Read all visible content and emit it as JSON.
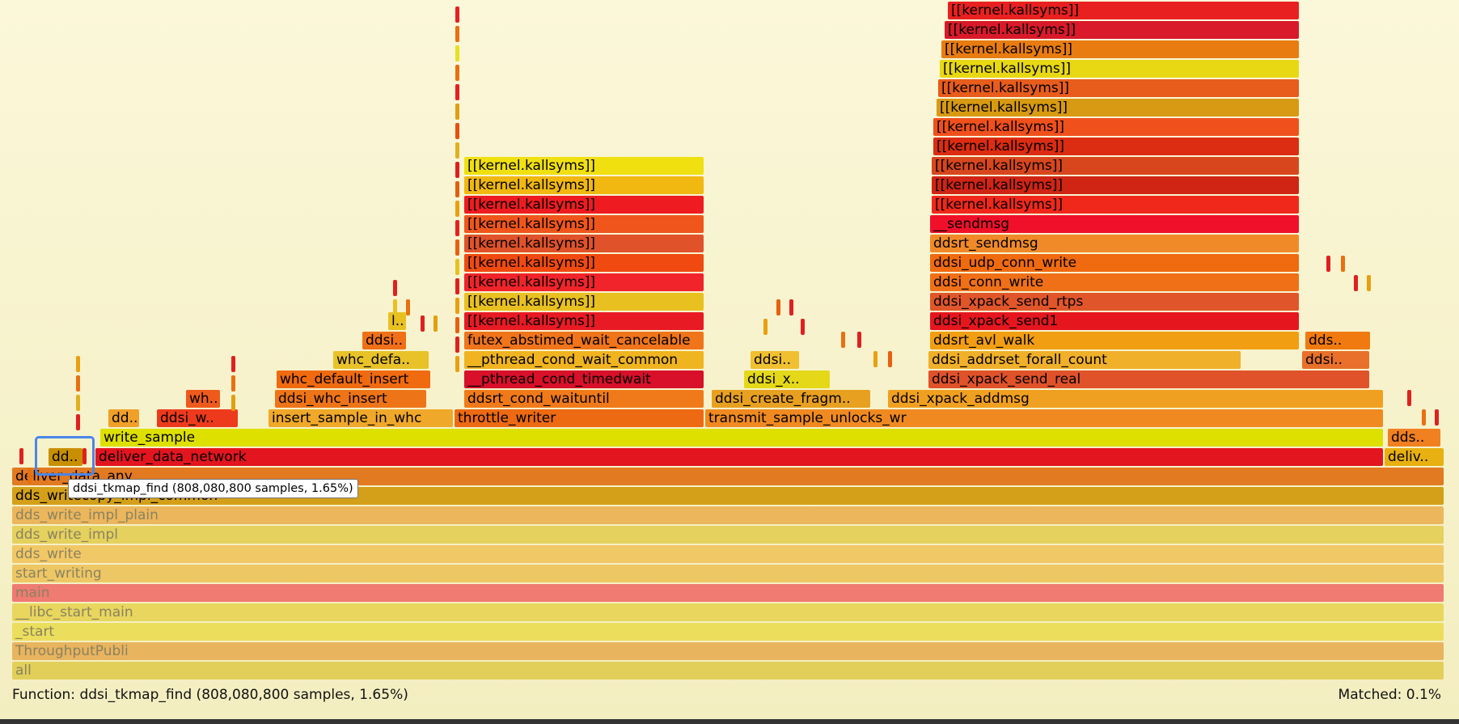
{
  "frames": [
    {
      "label": "all",
      "color": "#e2cf5a",
      "dim": true
    },
    {
      "label": "ThroughputPubli",
      "color": "#e8b45e",
      "dim": true
    },
    {
      "label": "_start",
      "color": "#ebde5d",
      "dim": true
    },
    {
      "label": "__libc_start_main",
      "color": "#e8d65e",
      "dim": true
    },
    {
      "label": "main",
      "color": "#ef7b73",
      "dim": true
    },
    {
      "label": "start_writing",
      "color": "#eec765",
      "dim": true
    },
    {
      "label": "dds_write",
      "color": "#f1c866",
      "dim": true
    },
    {
      "label": "dds_write_impl",
      "color": "#e5d15e",
      "dim": true
    },
    {
      "label": "dds_write_impl_plain",
      "color": "#ecb65c",
      "dim": true
    },
    {
      "label": "dds_writecopy_impl_common",
      "color": "#d4a01a"
    },
    {
      "label": "deliver_data_any",
      "color": "#e27a22"
    },
    {
      "label": "deliver_data_network",
      "color": "#e3151f"
    },
    {
      "label": "deliv..",
      "color": "#e8b010"
    },
    {
      "label": "dd..",
      "color": "#c89000"
    },
    {
      "label": "write_sample",
      "color": "#dee000"
    },
    {
      "label": "dds..",
      "color": "#f08020"
    },
    {
      "label": "dd..",
      "color": "#f0a028"
    },
    {
      "label": "ddsi_w..",
      "color": "#ee3a1c"
    },
    {
      "label": "insert_sample_in_whc",
      "color": "#f0a82a"
    },
    {
      "label": "throttle_writer",
      "color": "#ed6a12"
    },
    {
      "label": "transmit_sample_unlocks_wr",
      "color": "#f08a20"
    },
    {
      "label": "wh..",
      "color": "#ee5a1c"
    },
    {
      "label": "ddsi_whc_insert",
      "color": "#ee7418"
    },
    {
      "label": "ddsrt_cond_waituntil",
      "color": "#f07a1a"
    },
    {
      "label": "ddsi_create_fragm..",
      "color": "#e8a020"
    },
    {
      "label": "ddsi_xpack_addmsg",
      "color": "#f0a020"
    },
    {
      "label": "whc_default_insert",
      "color": "#f06a10"
    },
    {
      "label": "__pthread_cond_timedwait",
      "color": "#d8102a"
    },
    {
      "label": "ddsi_x..",
      "color": "#e4d818"
    },
    {
      "label": "ddsi_xpack_send_real",
      "color": "#e0522a"
    },
    {
      "label": "whc_defa..",
      "color": "#e8c228"
    },
    {
      "label": "__pthread_cond_wait_common",
      "color": "#f0b420"
    },
    {
      "label": "ddsi..",
      "color": "#f0c030"
    },
    {
      "label": "ddsi_addrset_forall_count",
      "color": "#f0b02a"
    },
    {
      "label": "ddsi..",
      "color": "#e8702a"
    },
    {
      "label": "ddsi..",
      "color": "#f07018"
    },
    {
      "label": "futex_abstimed_wait_cancelable",
      "color": "#f0741a"
    },
    {
      "label": "ddsrt_avl_walk",
      "color": "#f29e12"
    },
    {
      "label": "dds..",
      "color": "#f07a10"
    },
    {
      "label": "l..",
      "color": "#e8c020"
    },
    {
      "label": "[[kernel.kallsyms]]",
      "color": "#e81a24"
    },
    {
      "label": "ddsi_xpack_send1",
      "color": "#e6161e"
    },
    {
      "label": "[[kernel.kallsyms]]",
      "color": "#e8c020"
    },
    {
      "label": "ddsi_xpack_send_rtps",
      "color": "#e0562a"
    },
    {
      "label": "[[kernel.kallsyms]]",
      "color": "#f0242a"
    },
    {
      "label": "ddsi_conn_write",
      "color": "#f07018"
    },
    {
      "label": "[[kernel.kallsyms]]",
      "color": "#f04a10"
    },
    {
      "label": "ddsi_udp_conn_write",
      "color": "#f06a10"
    },
    {
      "label": "[[kernel.kallsyms]]",
      "color": "#e0522a"
    },
    {
      "label": "ddsrt_sendmsg",
      "color": "#f08a28"
    },
    {
      "label": "[[kernel.kallsyms]]",
      "color": "#f0561c"
    },
    {
      "label": "__sendmsg",
      "color": "#f0102a"
    },
    {
      "label": "[[kernel.kallsyms]]",
      "color": "#ee1c20"
    },
    {
      "label": "[[kernel.kallsyms]]",
      "color": "#f0281c"
    },
    {
      "label": "[[kernel.kallsyms]]",
      "color": "#f0b810"
    },
    {
      "label": "[[kernel.kallsyms]]",
      "color": "#d02414"
    },
    {
      "label": "[[kernel.kallsyms]]",
      "color": "#f0e010"
    },
    {
      "label": "[[kernel.kallsyms]]",
      "color": "#d8461e"
    },
    {
      "label": "[[kernel.kallsyms]]",
      "color": "#dc2c12"
    },
    {
      "label": "[[kernel.kallsyms]]",
      "color": "#f0501c"
    },
    {
      "label": "[[kernel.kallsyms]]",
      "color": "#d89a12"
    },
    {
      "label": "[[kernel.kallsyms]]",
      "color": "#e85c1c"
    },
    {
      "label": "[[kernel.kallsyms]]",
      "color": "#e8d814"
    },
    {
      "label": "[[kernel.kallsyms]]",
      "color": "#e87c10"
    },
    {
      "label": "[[kernel.kallsyms]]",
      "color": "#d81a2a"
    },
    {
      "label": "[[kernel.kallsyms]]",
      "color": "#e82020"
    }
  ],
  "tooltip": "ddsi_tkmap_find (808,080,800 samples, 1.65%)",
  "status": "Function: ddsi_tkmap_find (808,080,800 samples, 1.65%)",
  "matched": "Matched: 0.1%"
}
